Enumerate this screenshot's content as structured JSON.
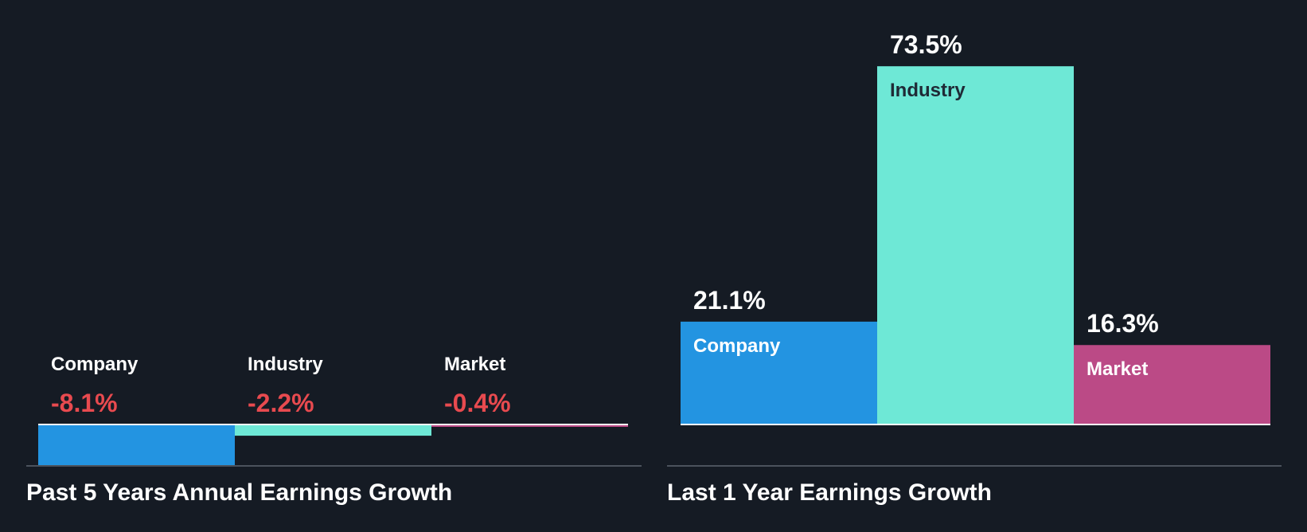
{
  "colors": {
    "background": "#151b24",
    "company": "#2394e1",
    "industry": "#6ee8d6",
    "market": "#bb4a86",
    "negative_text": "#e84a4f",
    "text": "#ffffff",
    "dark_text": "#1f2a36",
    "axis_line": "#ffffff",
    "divider": "#4b525c"
  },
  "chart_data": [
    {
      "type": "bar",
      "title": "Past 5 Years Annual Earnings Growth",
      "unit": "%",
      "categories": [
        "Company",
        "Industry",
        "Market"
      ],
      "values": [
        -8.1,
        -2.2,
        -0.4
      ],
      "value_labels": [
        "-8.1%",
        "-2.2%",
        "-0.4%"
      ],
      "xlabel": "",
      "ylabel": "",
      "grid": false,
      "legend": "none"
    },
    {
      "type": "bar",
      "title": "Last 1 Year Earnings Growth",
      "unit": "%",
      "categories": [
        "Company",
        "Industry",
        "Market"
      ],
      "values": [
        21.1,
        73.5,
        16.3
      ],
      "value_labels": [
        "21.1%",
        "73.5%",
        "16.3%"
      ],
      "xlabel": "",
      "ylabel": "",
      "grid": false,
      "legend": "none"
    }
  ]
}
